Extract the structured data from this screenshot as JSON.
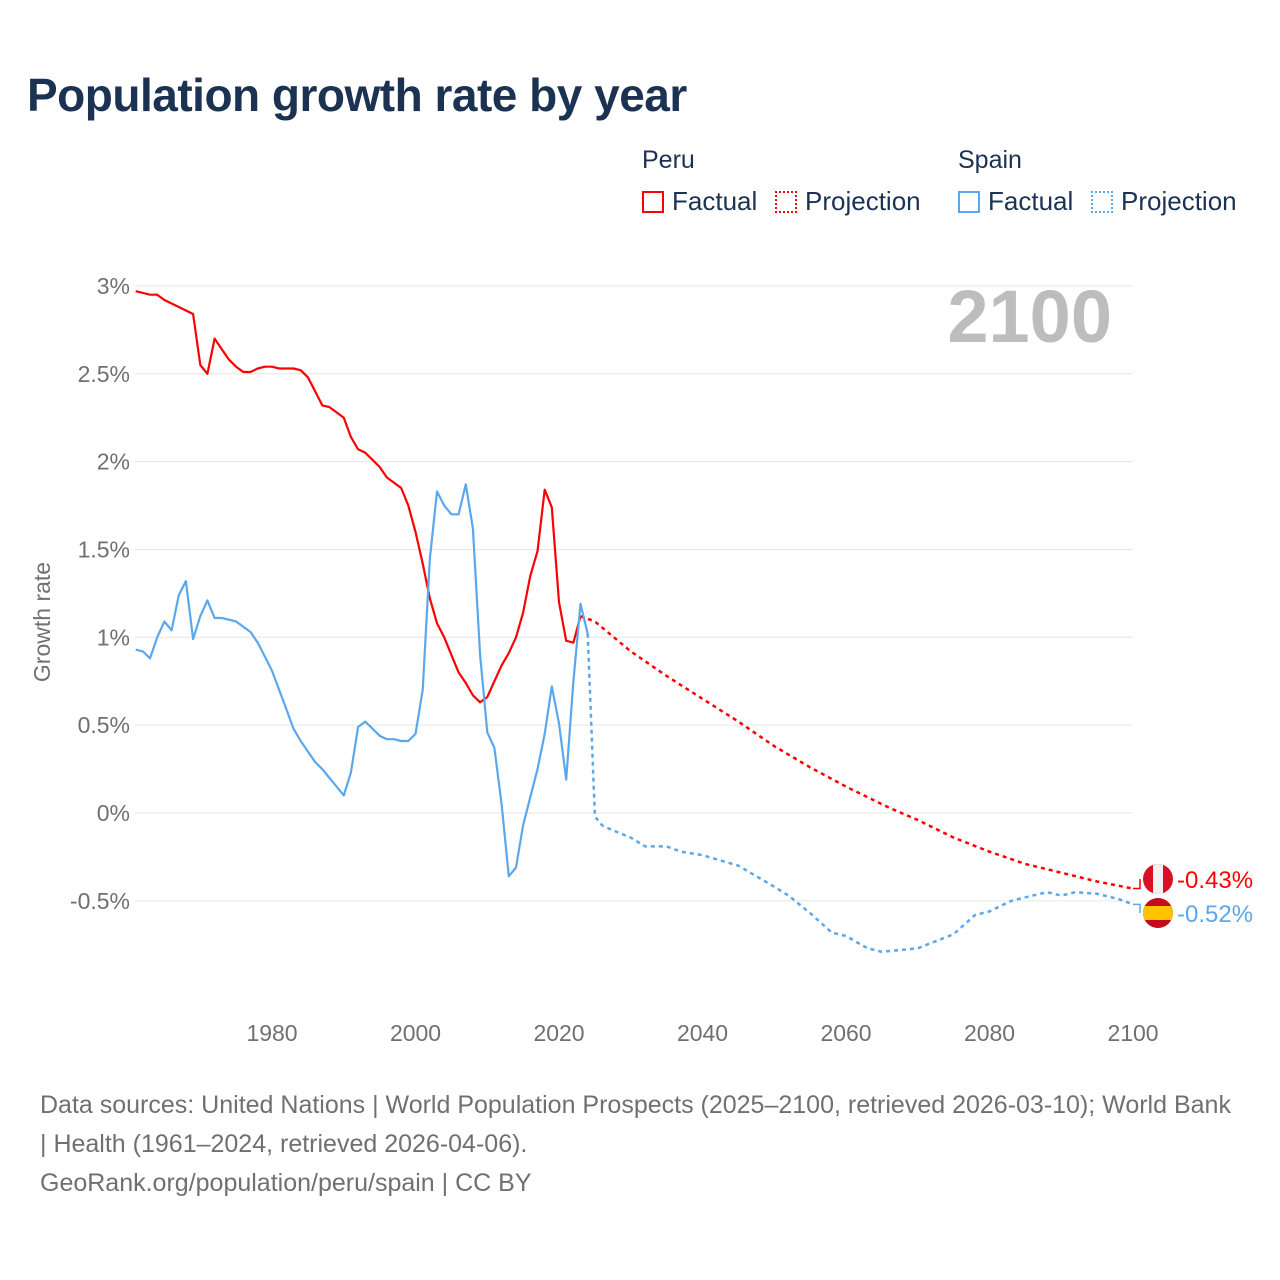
{
  "title": "Population growth rate by year",
  "legend": {
    "groups": [
      {
        "name": "Peru",
        "color": "#ff0000",
        "items": [
          "Factual",
          "Projection"
        ]
      },
      {
        "name": "Spain",
        "color": "#5ba7ec",
        "items": [
          "Factual",
          "Projection"
        ]
      }
    ]
  },
  "chart_data": {
    "type": "line",
    "title": "Population growth rate by year",
    "year_display": "2100",
    "xlabel": "",
    "ylabel": "Growth rate",
    "xlim": [
      1961,
      2100
    ],
    "ylim": [
      -1.0,
      3.0
    ],
    "x_ticks": [
      "1980",
      "2000",
      "2020",
      "2040",
      "2060",
      "2080",
      "2100"
    ],
    "y_ticks": [
      {
        "v": 3,
        "label": "3%"
      },
      {
        "v": 2.5,
        "label": "2.5%"
      },
      {
        "v": 2,
        "label": "2%"
      },
      {
        "v": 1.5,
        "label": "1.5%"
      },
      {
        "v": 1,
        "label": "1%"
      },
      {
        "v": 0.5,
        "label": "0.5%"
      },
      {
        "v": 0,
        "label": "0%"
      },
      {
        "v": -0.5,
        "label": "-0.5%"
      }
    ],
    "grid": true,
    "series": [
      {
        "name": "Peru",
        "color": "#ff0000",
        "end_label": "-0.43%",
        "factual_start": 1961,
        "factual": [
          2.97,
          2.96,
          2.95,
          2.95,
          2.92,
          2.9,
          2.88,
          2.86,
          2.84,
          2.55,
          2.5,
          2.7,
          2.64,
          2.58,
          2.54,
          2.51,
          2.51,
          2.53,
          2.54,
          2.54,
          2.53,
          2.53,
          2.53,
          2.52,
          2.48,
          2.4,
          2.32,
          2.31,
          2.28,
          2.25,
          2.14,
          2.07,
          2.05,
          2.01,
          1.97,
          1.91,
          1.88,
          1.85,
          1.75,
          1.6,
          1.42,
          1.22,
          1.08,
          1.0,
          0.9,
          0.8,
          0.74,
          0.67,
          0.63,
          0.66,
          0.75,
          0.84,
          0.91,
          1.0,
          1.14,
          1.35,
          1.49,
          1.84,
          1.74,
          1.2,
          0.98,
          0.97,
          1.12
        ],
        "projection": [
          [
            2023,
            1.12
          ],
          [
            2025,
            1.09
          ],
          [
            2030,
            0.92
          ],
          [
            2035,
            0.78
          ],
          [
            2040,
            0.65
          ],
          [
            2045,
            0.52
          ],
          [
            2050,
            0.38
          ],
          [
            2055,
            0.26
          ],
          [
            2060,
            0.15
          ],
          [
            2066,
            0.03
          ],
          [
            2070,
            -0.04
          ],
          [
            2075,
            -0.14
          ],
          [
            2080,
            -0.22
          ],
          [
            2085,
            -0.29
          ],
          [
            2090,
            -0.34
          ],
          [
            2095,
            -0.39
          ],
          [
            2100,
            -0.43
          ]
        ]
      },
      {
        "name": "Spain",
        "color": "#5ba7ec",
        "end_label": "-0.52%",
        "factual_start": 1961,
        "factual": [
          0.93,
          0.92,
          0.88,
          1.0,
          1.09,
          1.04,
          1.24,
          1.32,
          0.99,
          1.12,
          1.21,
          1.11,
          1.11,
          1.1,
          1.09,
          1.06,
          1.03,
          0.97,
          0.89,
          0.81,
          0.7,
          0.59,
          0.48,
          0.41,
          0.35,
          0.29,
          0.25,
          0.2,
          0.15,
          0.1,
          0.23,
          0.49,
          0.52,
          0.48,
          0.44,
          0.42,
          0.42,
          0.41,
          0.41,
          0.45,
          0.7,
          1.45,
          1.83,
          1.75,
          1.7,
          1.7,
          1.87,
          1.62,
          0.9,
          0.46,
          0.37,
          0.05,
          -0.36,
          -0.31,
          -0.07,
          0.09,
          0.25,
          0.45,
          0.72,
          0.51,
          0.19,
          0.75,
          1.19,
          1.02
        ],
        "projection": [
          [
            2024,
            1.02
          ],
          [
            2025,
            -0.02
          ],
          [
            2026,
            -0.07
          ],
          [
            2027,
            -0.09
          ],
          [
            2030,
            -0.14
          ],
          [
            2032,
            -0.19
          ],
          [
            2035,
            -0.19
          ],
          [
            2037,
            -0.22
          ],
          [
            2040,
            -0.24
          ],
          [
            2045,
            -0.3
          ],
          [
            2050,
            -0.42
          ],
          [
            2052,
            -0.47
          ],
          [
            2055,
            -0.57
          ],
          [
            2058,
            -0.68
          ],
          [
            2060,
            -0.7
          ],
          [
            2063,
            -0.77
          ],
          [
            2065,
            -0.79
          ],
          [
            2070,
            -0.77
          ],
          [
            2075,
            -0.69
          ],
          [
            2078,
            -0.58
          ],
          [
            2080,
            -0.56
          ],
          [
            2083,
            -0.5
          ],
          [
            2088,
            -0.45
          ],
          [
            2090,
            -0.47
          ],
          [
            2092,
            -0.45
          ],
          [
            2095,
            -0.46
          ],
          [
            2098,
            -0.49
          ],
          [
            2100,
            -0.52
          ]
        ]
      }
    ]
  },
  "footer": {
    "sources": "Data sources: United Nations | World Population Prospects (2025–2100, retrieved 2026-03-10); World Bank | Health (1961–2024, retrieved 2026-04-06).",
    "link": "GeoRank.org/population/peru/spain | CC BY"
  }
}
